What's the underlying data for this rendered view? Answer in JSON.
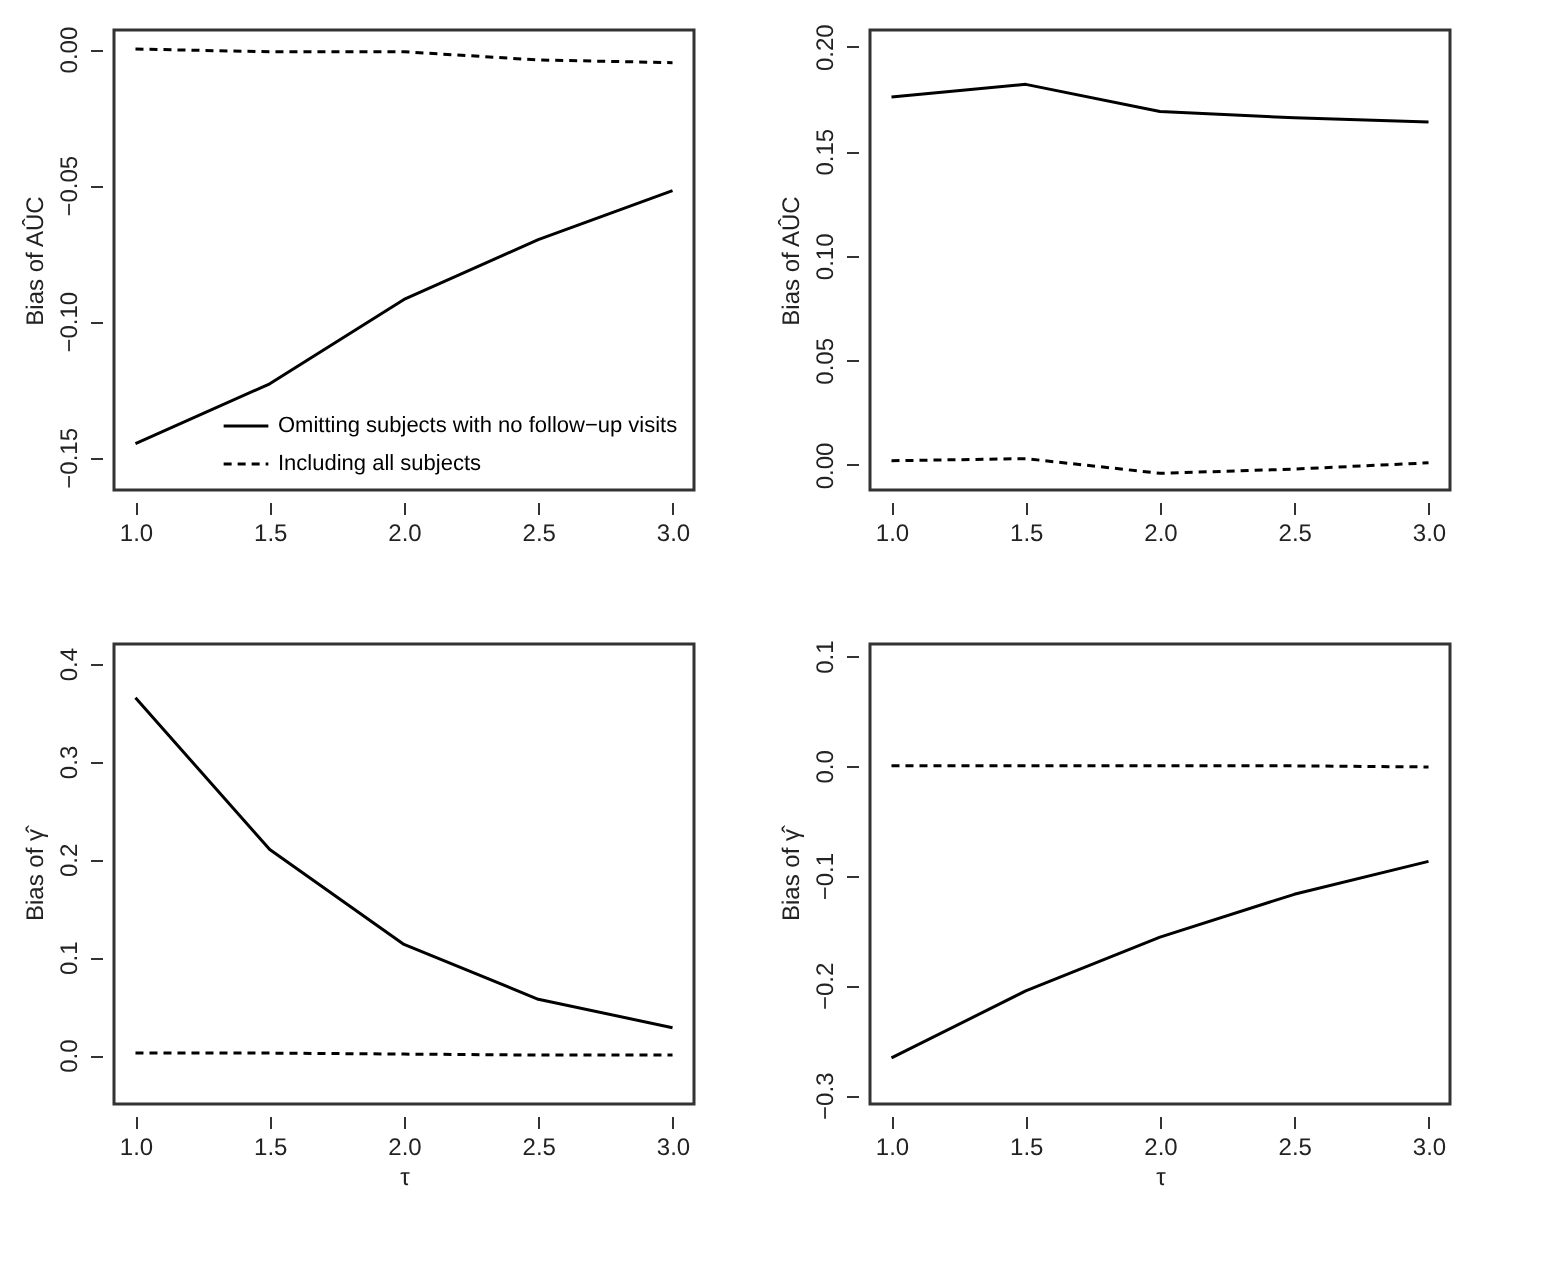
{
  "chart_data": [
    {
      "type": "line",
      "ylabel": "Bias of AÛC",
      "x": [
        1.0,
        1.5,
        2.0,
        2.5,
        3.0
      ],
      "xlim": [
        0.92,
        3.08
      ],
      "ylim": [
        -0.162,
        0.007
      ],
      "xticks": [
        {
          "value": 1,
          "label": "1.0"
        },
        {
          "value": 1.5,
          "label": "1.5"
        },
        {
          "value": 2,
          "label": "2.0"
        },
        {
          "value": 2.5,
          "label": "2.5"
        },
        {
          "value": 3,
          "label": "3.0"
        }
      ],
      "yticks": [
        {
          "value": -0.15,
          "label": "−0.15"
        },
        {
          "value": -0.1,
          "label": "−0.10"
        },
        {
          "value": -0.05,
          "label": "−0.05"
        },
        {
          "value": 0,
          "label": "0.00"
        }
      ],
      "series": [
        {
          "name": "Omitting subjects with no follow−up visits",
          "color": "#000000",
          "line_style": "solid",
          "values": [
            -0.145,
            -0.123,
            -0.092,
            -0.07,
            -0.052
          ]
        },
        {
          "name": "Including all subjects",
          "color": "#000000",
          "line_style": "dashed",
          "values": [
            0.0,
            -0.001,
            -0.001,
            -0.004,
            -0.005
          ]
        }
      ],
      "legend": "bottom right",
      "grid": false
    },
    {
      "type": "line",
      "ylabel": "Bias of AÛC",
      "x": [
        1.0,
        1.5,
        2.0,
        2.5,
        3.0
      ],
      "xlim": [
        0.92,
        3.08
      ],
      "ylim": [
        -0.012,
        0.208
      ],
      "xticks": [
        {
          "value": 1,
          "label": "1.0"
        },
        {
          "value": 1.5,
          "label": "1.5"
        },
        {
          "value": 2,
          "label": "2.0"
        },
        {
          "value": 2.5,
          "label": "2.5"
        },
        {
          "value": 3,
          "label": "3.0"
        }
      ],
      "yticks": [
        {
          "value": 0,
          "label": "0.00"
        },
        {
          "value": 0.05,
          "label": "0.05"
        },
        {
          "value": 0.1,
          "label": "0.10"
        },
        {
          "value": 0.15,
          "label": "0.15"
        },
        {
          "value": 0.2,
          "label": "0.20"
        }
      ],
      "series": [
        {
          "color": "#000000",
          "line_style": "solid",
          "values": [
            0.176,
            0.182,
            0.169,
            0.166,
            0.164
          ]
        },
        {
          "color": "#000000",
          "line_style": "dashed",
          "values": [
            0.002,
            0.003,
            -0.004,
            -0.002,
            0.001
          ]
        }
      ],
      "grid": false
    },
    {
      "type": "line",
      "ylabel": "Bias of γ̂",
      "xlabel": "τ",
      "x": [
        1.0,
        1.5,
        2.0,
        2.5,
        3.0
      ],
      "xlim": [
        0.92,
        3.08
      ],
      "ylim": [
        -0.05,
        0.42
      ],
      "xticks": [
        {
          "value": 1,
          "label": "1.0"
        },
        {
          "value": 1.5,
          "label": "1.5"
        },
        {
          "value": 2,
          "label": "2.0"
        },
        {
          "value": 2.5,
          "label": "2.5"
        },
        {
          "value": 3,
          "label": "3.0"
        }
      ],
      "yticks": [
        {
          "value": 0,
          "label": "0.0"
        },
        {
          "value": 0.1,
          "label": "0.1"
        },
        {
          "value": 0.2,
          "label": "0.2"
        },
        {
          "value": 0.3,
          "label": "0.3"
        },
        {
          "value": 0.4,
          "label": "0.4"
        }
      ],
      "series": [
        {
          "color": "#000000",
          "line_style": "solid",
          "values": [
            0.365,
            0.21,
            0.113,
            0.057,
            0.028
          ]
        },
        {
          "color": "#000000",
          "line_style": "dashed",
          "values": [
            0.002,
            0.002,
            0.001,
            0.0,
            0.0
          ]
        }
      ],
      "grid": false
    },
    {
      "type": "line",
      "ylabel": "Bias of γ̂",
      "xlabel": "τ",
      "x": [
        1.0,
        1.5,
        2.0,
        2.5,
        3.0
      ],
      "xlim": [
        0.92,
        3.08
      ],
      "ylim": [
        -0.308,
        0.111
      ],
      "xticks": [
        {
          "value": 1,
          "label": "1.0"
        },
        {
          "value": 1.5,
          "label": "1.5"
        },
        {
          "value": 2,
          "label": "2.0"
        },
        {
          "value": 2.5,
          "label": "2.5"
        },
        {
          "value": 3,
          "label": "3.0"
        }
      ],
      "yticks": [
        {
          "value": -0.3,
          "label": "−0.3"
        },
        {
          "value": -0.2,
          "label": "−0.2"
        },
        {
          "value": -0.1,
          "label": "−0.1"
        },
        {
          "value": 0,
          "label": "0.0"
        },
        {
          "value": 0.1,
          "label": "0.1"
        }
      ],
      "series": [
        {
          "color": "#000000",
          "line_style": "solid",
          "values": [
            -0.266,
            -0.205,
            -0.156,
            -0.117,
            -0.087
          ]
        },
        {
          "color": "#000000",
          "line_style": "dashed",
          "values": [
            0.0,
            0.0,
            0.0,
            0.0,
            -0.001
          ]
        }
      ],
      "grid": false
    }
  ]
}
